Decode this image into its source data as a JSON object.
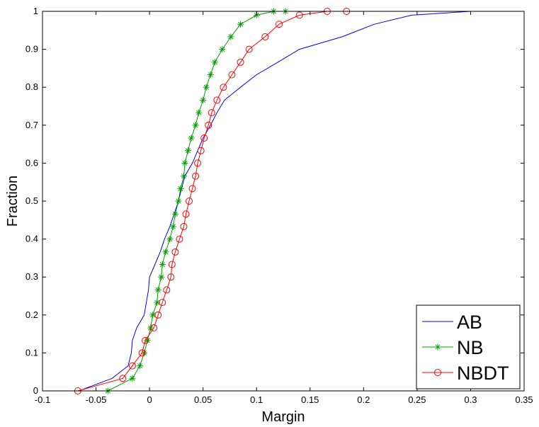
{
  "chart_data": {
    "type": "line",
    "xlabel": "Margin",
    "ylabel": "Fraction",
    "xlim": [
      -0.1,
      0.35
    ],
    "ylim": [
      0,
      1
    ],
    "xticks": [
      "-0.1",
      "-0.05",
      "0",
      "0.05",
      "0.1",
      "0.15",
      "0.2",
      "0.25",
      "0.3",
      "0.35"
    ],
    "yticks": [
      "0",
      "0.1",
      "0.2",
      "0.3",
      "0.4",
      "0.5",
      "0.6",
      "0.7",
      "0.8",
      "0.9",
      "1"
    ],
    "grid": false,
    "legend": {
      "placement": "bottom-right"
    },
    "series": [
      {
        "name": "AB",
        "color": "#0000ff",
        "marker": "none",
        "points": [
          [
            -0.066,
            0.0
          ],
          [
            -0.035,
            0.033
          ],
          [
            -0.02,
            0.066
          ],
          [
            -0.017,
            0.1
          ],
          [
            -0.016,
            0.133
          ],
          [
            -0.012,
            0.166
          ],
          [
            -0.005,
            0.2
          ],
          [
            -0.003,
            0.233
          ],
          [
            -0.001,
            0.266
          ],
          [
            0.0,
            0.3
          ],
          [
            0.005,
            0.333
          ],
          [
            0.01,
            0.366
          ],
          [
            0.014,
            0.4
          ],
          [
            0.019,
            0.433
          ],
          [
            0.023,
            0.466
          ],
          [
            0.027,
            0.5
          ],
          [
            0.03,
            0.533
          ],
          [
            0.033,
            0.566
          ],
          [
            0.04,
            0.6
          ],
          [
            0.045,
            0.633
          ],
          [
            0.05,
            0.666
          ],
          [
            0.057,
            0.7
          ],
          [
            0.063,
            0.733
          ],
          [
            0.07,
            0.766
          ],
          [
            0.085,
            0.8
          ],
          [
            0.1,
            0.833
          ],
          [
            0.12,
            0.866
          ],
          [
            0.14,
            0.9
          ],
          [
            0.18,
            0.933
          ],
          [
            0.21,
            0.966
          ],
          [
            0.245,
            0.99
          ],
          [
            0.3,
            1.0
          ],
          [
            0.31,
            1.0
          ]
        ]
      },
      {
        "name": "NB",
        "color": "#00a000",
        "marker": "star",
        "points": [
          [
            -0.039,
            0.0
          ],
          [
            -0.016,
            0.033
          ],
          [
            -0.009,
            0.066
          ],
          [
            -0.005,
            0.1
          ],
          [
            -0.002,
            0.133
          ],
          [
            0.001,
            0.166
          ],
          [
            0.003,
            0.2
          ],
          [
            0.007,
            0.233
          ],
          [
            0.008,
            0.266
          ],
          [
            0.011,
            0.3
          ],
          [
            0.012,
            0.333
          ],
          [
            0.015,
            0.366
          ],
          [
            0.019,
            0.4
          ],
          [
            0.022,
            0.433
          ],
          [
            0.024,
            0.466
          ],
          [
            0.027,
            0.5
          ],
          [
            0.029,
            0.533
          ],
          [
            0.032,
            0.566
          ],
          [
            0.033,
            0.6
          ],
          [
            0.036,
            0.633
          ],
          [
            0.039,
            0.666
          ],
          [
            0.043,
            0.7
          ],
          [
            0.046,
            0.733
          ],
          [
            0.05,
            0.766
          ],
          [
            0.053,
            0.8
          ],
          [
            0.057,
            0.833
          ],
          [
            0.061,
            0.866
          ],
          [
            0.068,
            0.9
          ],
          [
            0.076,
            0.933
          ],
          [
            0.085,
            0.966
          ],
          [
            0.1,
            0.99
          ],
          [
            0.116,
            1.0
          ],
          [
            0.127,
            1.0
          ]
        ]
      },
      {
        "name": "NBDT",
        "color": "#ff0000",
        "marker": "circle",
        "points": [
          [
            -0.067,
            0.0
          ],
          [
            -0.025,
            0.033
          ],
          [
            -0.016,
            0.066
          ],
          [
            -0.007,
            0.1
          ],
          [
            -0.004,
            0.133
          ],
          [
            0.004,
            0.166
          ],
          [
            0.008,
            0.2
          ],
          [
            0.012,
            0.233
          ],
          [
            0.016,
            0.266
          ],
          [
            0.02,
            0.3
          ],
          [
            0.021,
            0.333
          ],
          [
            0.024,
            0.366
          ],
          [
            0.028,
            0.4
          ],
          [
            0.032,
            0.433
          ],
          [
            0.034,
            0.466
          ],
          [
            0.037,
            0.5
          ],
          [
            0.04,
            0.533
          ],
          [
            0.043,
            0.566
          ],
          [
            0.045,
            0.6
          ],
          [
            0.048,
            0.633
          ],
          [
            0.051,
            0.666
          ],
          [
            0.055,
            0.7
          ],
          [
            0.058,
            0.733
          ],
          [
            0.063,
            0.766
          ],
          [
            0.069,
            0.8
          ],
          [
            0.077,
            0.833
          ],
          [
            0.085,
            0.866
          ],
          [
            0.093,
            0.9
          ],
          [
            0.108,
            0.933
          ],
          [
            0.121,
            0.966
          ],
          [
            0.14,
            0.99
          ],
          [
            0.166,
            1.0
          ],
          [
            0.184,
            1.0
          ]
        ]
      }
    ]
  }
}
